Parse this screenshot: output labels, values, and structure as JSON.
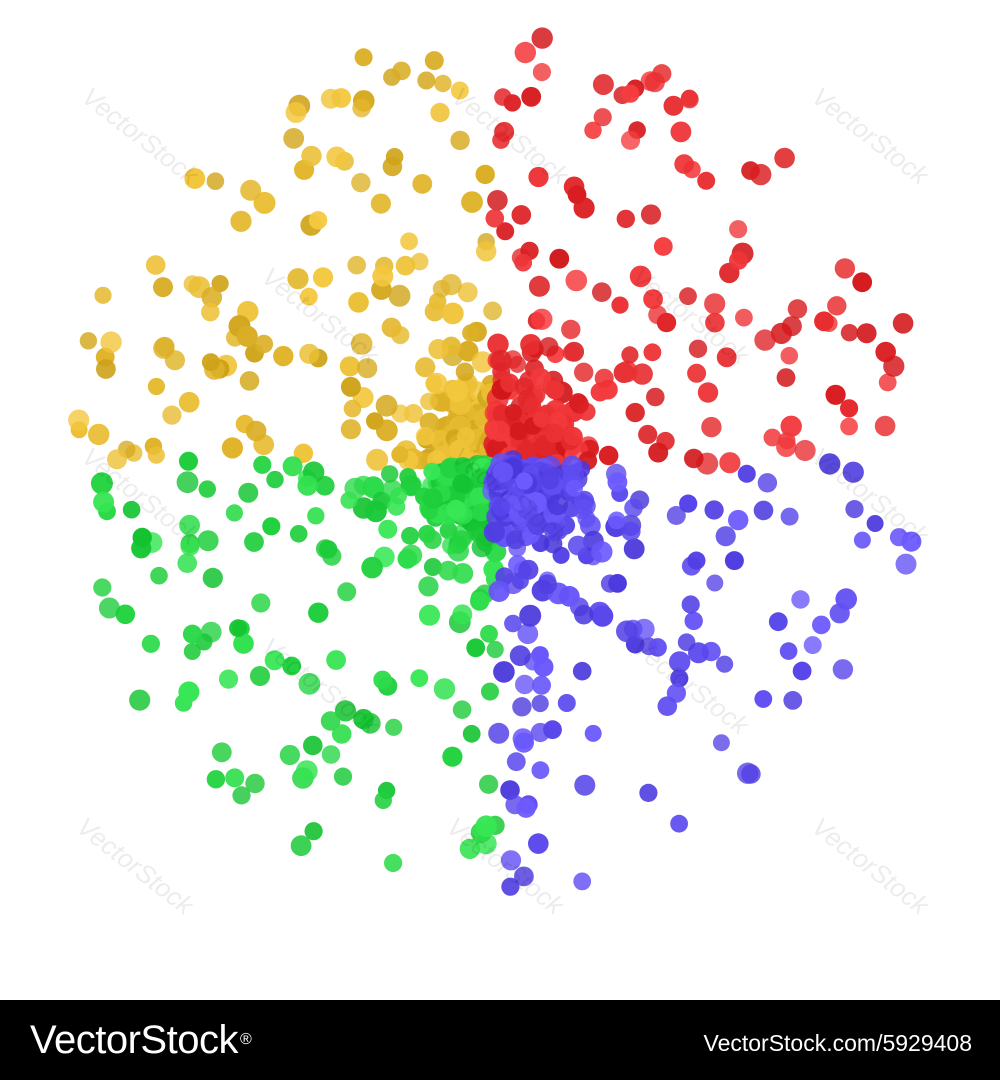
{
  "artwork": {
    "colors": {
      "yellow": "#e1b52b",
      "red": "#e3292c",
      "green": "#25d442",
      "blue": "#5a48ec"
    },
    "clusters": [
      "yellow",
      "red",
      "green",
      "blue"
    ]
  },
  "watermark": {
    "text": "VectorStock"
  },
  "footer": {
    "brand": "VectorStock",
    "registered": "®",
    "url": "VectorStock.com/5929408"
  }
}
